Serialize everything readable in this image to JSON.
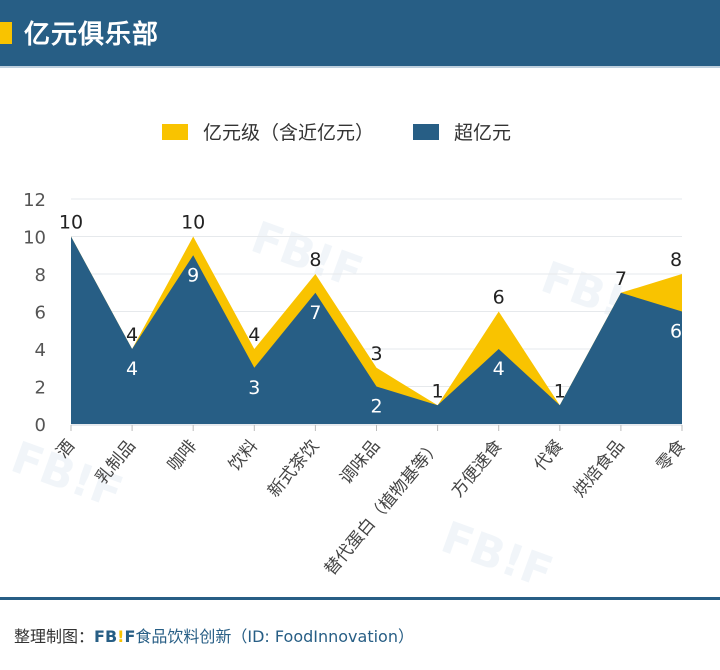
{
  "header": {
    "title": "亿元俱乐部",
    "accent_color": "#f9c300",
    "bg_color": "#275e85"
  },
  "legend": [
    {
      "label": "亿元级（含近亿元）",
      "color": "#f9c300"
    },
    {
      "label": "超亿元",
      "color": "#275e85"
    }
  ],
  "footer": {
    "prefix": "整理制图：",
    "brand_fb": "FB",
    "brand_bang": "!",
    "brand_f": "F",
    "source": "食品饮料创新（ID: FoodInnovation）"
  },
  "watermark": "FB!F",
  "chart_data": {
    "type": "area",
    "title": "亿元俱乐部",
    "xlabel": "",
    "ylabel": "",
    "ylim": [
      0,
      12
    ],
    "yticks": [
      0,
      2,
      4,
      6,
      8,
      10,
      12
    ],
    "grid": true,
    "legend_position": "top",
    "categories": [
      "酒",
      "乳制品",
      "咖啡",
      "饮料",
      "新式茶饮",
      "调味品",
      "替代蛋白（植物基等）",
      "方便速食",
      "代餐",
      "烘焙食品",
      "零食"
    ],
    "series": [
      {
        "name": "亿元级（含近亿元）",
        "color": "#f9c300",
        "values": [
          10,
          4,
          10,
          4,
          8,
          3,
          1,
          6,
          1,
          7,
          8
        ]
      },
      {
        "name": "超亿元",
        "color": "#275e85",
        "values": [
          10,
          4,
          9,
          3,
          7,
          2,
          1,
          4,
          1,
          7,
          6
        ]
      }
    ]
  }
}
